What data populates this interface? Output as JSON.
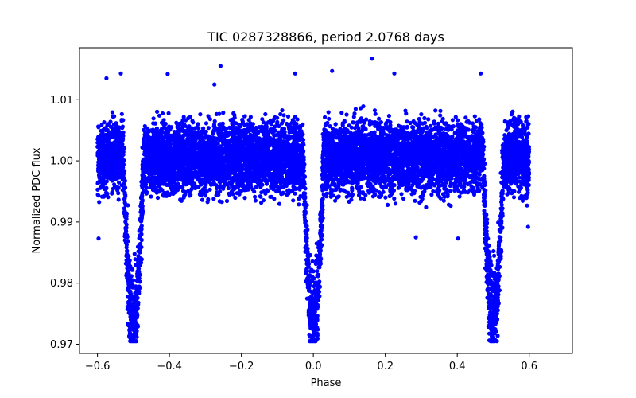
{
  "chart_data": {
    "type": "scatter",
    "title": "TIC 0287328866, period 2.0768 days",
    "xlabel": "Phase",
    "ylabel": "Normalized PDC flux",
    "xlim": [
      -0.65,
      0.72
    ],
    "ylim": [
      0.9685,
      1.0185
    ],
    "x_ticks": [
      -0.6,
      -0.4,
      -0.2,
      0.0,
      0.2,
      0.4,
      0.6
    ],
    "x_tick_labels": [
      "−0.6",
      "−0.4",
      "−0.2",
      "0.0",
      "0.2",
      "0.4",
      "0.6"
    ],
    "y_ticks": [
      0.97,
      0.98,
      0.99,
      1.0,
      1.01
    ],
    "y_tick_labels": [
      "0.97",
      "0.98",
      "0.99",
      "1.00",
      "1.01"
    ],
    "grid": false,
    "legend": "none",
    "marker_color": "#0000ff",
    "series": [
      {
        "phase_range": [
          -0.6,
          0.6
        ],
        "baseline_flux": 1.0,
        "baseline_spread": [
          0.992,
          1.009
        ],
        "eclipses": [
          {
            "center_phase": -0.5,
            "min_flux": 0.971
          },
          {
            "center_phase": 0.0,
            "min_flux": 0.9705
          },
          {
            "center_phase": 0.5,
            "min_flux": 0.9725
          }
        ],
        "outliers": [
          {
            "x": -0.597,
            "y": 0.9873
          },
          {
            "x": -0.575,
            "y": 1.0135
          },
          {
            "x": -0.535,
            "y": 1.0143
          },
          {
            "x": -0.405,
            "y": 1.0142
          },
          {
            "x": -0.275,
            "y": 1.0125
          },
          {
            "x": -0.258,
            "y": 1.0155
          },
          {
            "x": -0.0505,
            "y": 1.0143
          },
          {
            "x": 0.052,
            "y": 1.0147
          },
          {
            "x": 0.163,
            "y": 1.0167
          },
          {
            "x": 0.225,
            "y": 1.0143
          },
          {
            "x": 0.285,
            "y": 0.9875
          },
          {
            "x": 0.402,
            "y": 0.9873
          },
          {
            "x": 0.465,
            "y": 1.0143
          },
          {
            "x": 0.597,
            "y": 0.9892
          }
        ]
      }
    ]
  }
}
